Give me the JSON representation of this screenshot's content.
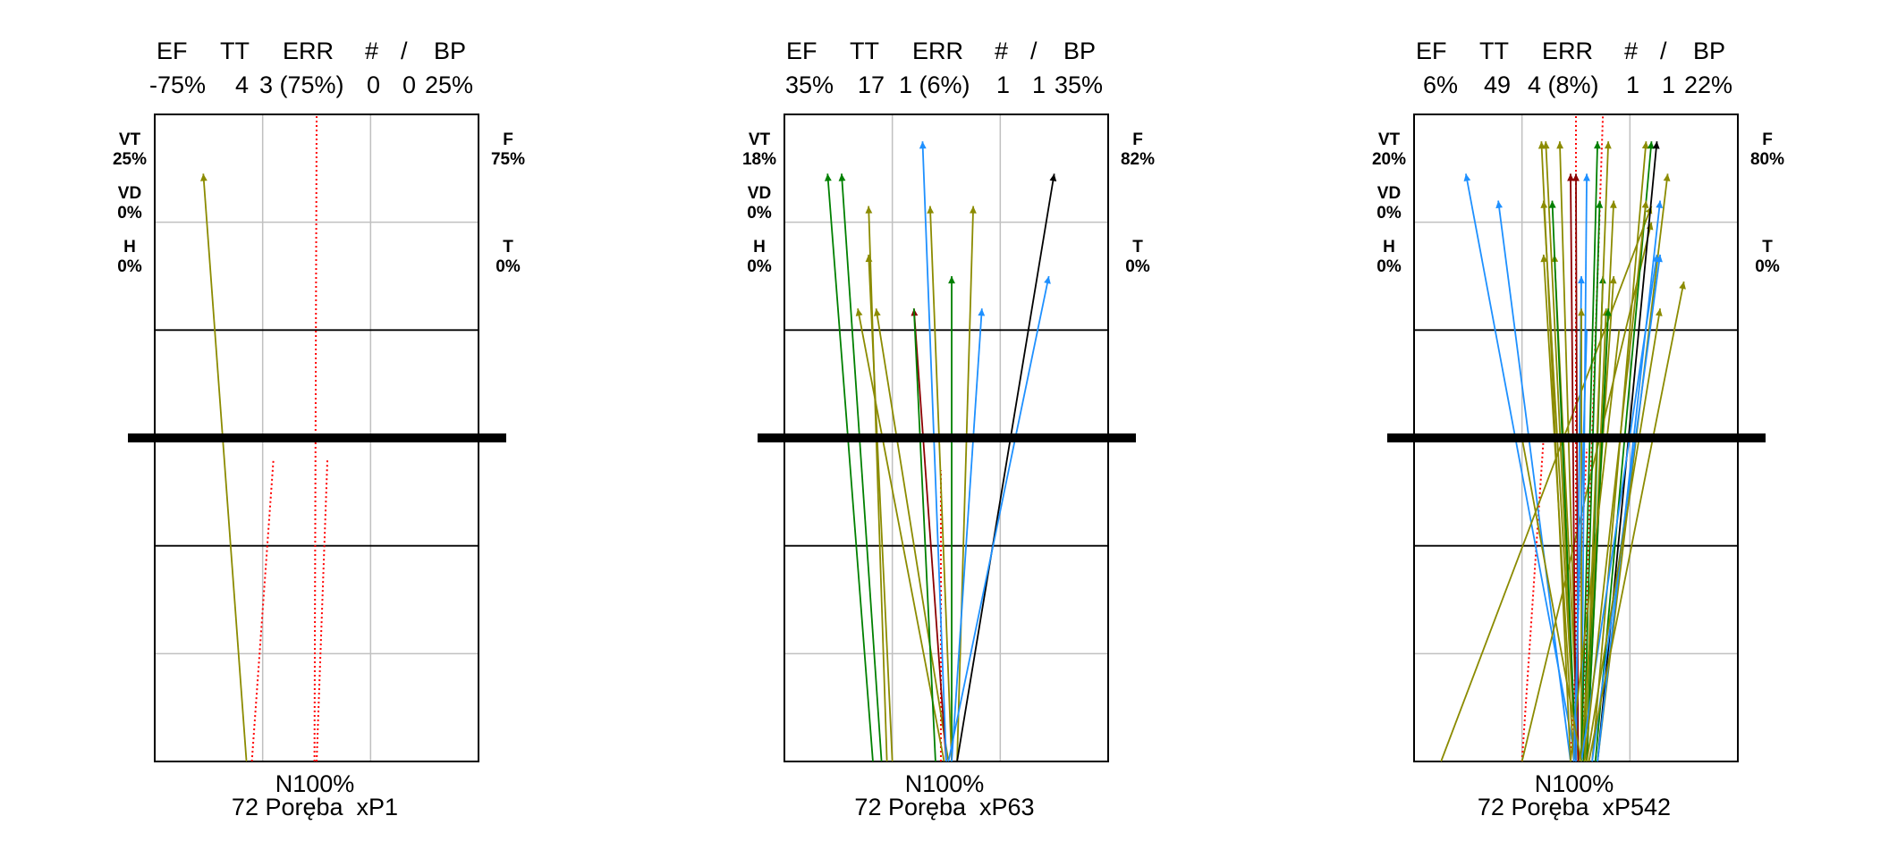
{
  "colors": {
    "olive": "#8b8b00",
    "green": "#008000",
    "blue": "#1e90ff",
    "darkred": "#8b0000",
    "black": "#000000",
    "error_red": "#ff0000",
    "grid": "#c0c0c0"
  },
  "panels": [
    {
      "headers": [
        "EF",
        "TT",
        "ERR",
        "#",
        "/",
        "BP"
      ],
      "values": [
        "-75%",
        "4",
        "3 (75%)",
        "0",
        "0",
        "25%"
      ],
      "left_labels": [
        {
          "code": "VT",
          "pct": "25%"
        },
        {
          "code": "VD",
          "pct": "0%"
        },
        {
          "code": "H",
          "pct": "0%"
        }
      ],
      "right_labels": [
        {
          "code": "F",
          "pct": "75%"
        },
        {
          "code": "T",
          "pct": "0%"
        }
      ],
      "footer_line1": "N100%",
      "footer_line2": "72 Poręba  xP1"
    },
    {
      "headers": [
        "EF",
        "TT",
        "ERR",
        "#",
        "/",
        "BP"
      ],
      "values": [
        "35%",
        "17",
        "1 (6%)",
        "1",
        "1",
        "35%"
      ],
      "left_labels": [
        {
          "code": "VT",
          "pct": "18%"
        },
        {
          "code": "VD",
          "pct": "0%"
        },
        {
          "code": "H",
          "pct": "0%"
        }
      ],
      "right_labels": [
        {
          "code": "F",
          "pct": "82%"
        },
        {
          "code": "T",
          "pct": "0%"
        }
      ],
      "footer_line1": "N100%",
      "footer_line2": "72 Poręba  xP63"
    },
    {
      "headers": [
        "EF",
        "TT",
        "ERR",
        "#",
        "/",
        "BP"
      ],
      "values": [
        "6%",
        "49",
        "4 (8%)",
        "1",
        "1",
        "22%"
      ],
      "left_labels": [
        {
          "code": "VT",
          "pct": "20%"
        },
        {
          "code": "VD",
          "pct": "0%"
        },
        {
          "code": "H",
          "pct": "0%"
        }
      ],
      "right_labels": [
        {
          "code": "F",
          "pct": "80%"
        },
        {
          "code": "T",
          "pct": "0%"
        }
      ],
      "footer_line1": "N100%",
      "footer_line2": "72 Poręba  xP542"
    }
  ],
  "chart_data": [
    {
      "type": "scatter",
      "xlim": [
        0,
        3
      ],
      "ylim": [
        0,
        6
      ],
      "grid": true,
      "lines": [
        {
          "color": "olive",
          "from": [
            0.85,
            0
          ],
          "to": [
            0.45,
            5.45
          ],
          "arrow": true
        }
      ],
      "errors": [
        {
          "from": [
            0.9,
            0
          ],
          "to": [
            1.1,
            2.8
          ]
        },
        {
          "from": [
            1.5,
            0
          ],
          "to": [
            1.6,
            2.8
          ]
        },
        {
          "from": [
            1.48,
            0
          ],
          "to": [
            1.5,
            6
          ]
        }
      ]
    },
    {
      "type": "scatter",
      "xlim": [
        0,
        3
      ],
      "ylim": [
        0,
        6
      ],
      "grid": true,
      "lines": [
        {
          "color": "green",
          "from": [
            0.82,
            0
          ],
          "to": [
            0.4,
            5.45
          ],
          "arrow": true
        },
        {
          "color": "green",
          "from": [
            0.9,
            0
          ],
          "to": [
            0.53,
            5.45
          ],
          "arrow": true
        },
        {
          "color": "olive",
          "from": [
            0.95,
            0
          ],
          "to": [
            0.78,
            5.15
          ],
          "arrow": true
        },
        {
          "color": "olive",
          "from": [
            1.0,
            0
          ],
          "to": [
            0.78,
            4.7
          ],
          "arrow": true
        },
        {
          "color": "olive",
          "from": [
            1.48,
            0
          ],
          "to": [
            0.68,
            4.2
          ],
          "arrow": true
        },
        {
          "color": "olive",
          "from": [
            1.52,
            0
          ],
          "to": [
            0.85,
            4.2
          ],
          "arrow": true
        },
        {
          "color": "darkred",
          "from": [
            1.5,
            0
          ],
          "to": [
            1.2,
            4.2
          ],
          "arrow": true
        },
        {
          "color": "green",
          "from": [
            1.55,
            0
          ],
          "to": [
            1.55,
            4.5
          ],
          "arrow": true
        },
        {
          "color": "blue",
          "from": [
            1.5,
            0
          ],
          "to": [
            1.28,
            5.75
          ],
          "arrow": true
        },
        {
          "color": "olive",
          "from": [
            1.55,
            0
          ],
          "to": [
            1.35,
            5.15
          ],
          "arrow": true
        },
        {
          "color": "olive",
          "from": [
            1.6,
            0
          ],
          "to": [
            1.75,
            5.15
          ],
          "arrow": true
        },
        {
          "color": "blue",
          "from": [
            1.55,
            0
          ],
          "to": [
            1.83,
            4.2
          ],
          "arrow": true
        },
        {
          "color": "black",
          "from": [
            1.6,
            0
          ],
          "to": [
            2.5,
            5.45
          ],
          "arrow": true
        },
        {
          "color": "blue",
          "from": [
            1.52,
            0
          ],
          "to": [
            2.45,
            4.5
          ],
          "arrow": true
        },
        {
          "color": "green",
          "from": [
            1.4,
            0
          ],
          "to": [
            1.2,
            4.2
          ],
          "arrow": false
        }
      ],
      "errors": [
        {
          "from": [
            1.45,
            0
          ],
          "to": [
            1.45,
            2.7
          ]
        }
      ]
    },
    {
      "type": "scatter",
      "xlim": [
        0,
        3
      ],
      "ylim": [
        0,
        6
      ],
      "grid": true,
      "lines": [
        {
          "color": "blue",
          "from": [
            1.5,
            0
          ],
          "to": [
            0.48,
            5.45
          ],
          "arrow": true
        },
        {
          "color": "blue",
          "from": [
            1.45,
            0
          ],
          "to": [
            0.78,
            5.2
          ],
          "arrow": true
        },
        {
          "color": "olive",
          "from": [
            0.25,
            0
          ],
          "to": [
            2.2,
            5.15
          ],
          "arrow": true
        },
        {
          "color": "olive",
          "from": [
            1.0,
            0
          ],
          "to": [
            2.2,
            5.0
          ],
          "arrow": true
        },
        {
          "color": "olive",
          "from": [
            1.45,
            0
          ],
          "to": [
            1.18,
            5.75
          ],
          "arrow": true
        },
        {
          "color": "olive",
          "from": [
            1.5,
            0
          ],
          "to": [
            1.22,
            5.75
          ],
          "arrow": true
        },
        {
          "color": "olive",
          "from": [
            1.52,
            0
          ],
          "to": [
            1.35,
            5.75
          ],
          "arrow": true
        },
        {
          "color": "olive",
          "from": [
            1.5,
            0
          ],
          "to": [
            1.2,
            5.2
          ],
          "arrow": true
        },
        {
          "color": "olive",
          "from": [
            1.48,
            0
          ],
          "to": [
            1.2,
            4.7
          ],
          "arrow": true
        },
        {
          "color": "olive",
          "from": [
            1.53,
            0
          ],
          "to": [
            1.3,
            4.7
          ],
          "arrow": true
        },
        {
          "color": "green",
          "from": [
            1.5,
            0
          ],
          "to": [
            1.28,
            5.2
          ],
          "arrow": true
        },
        {
          "color": "darkred",
          "from": [
            1.5,
            0
          ],
          "to": [
            1.45,
            5.45
          ],
          "arrow": true
        },
        {
          "color": "darkred",
          "from": [
            1.52,
            0
          ],
          "to": [
            1.5,
            5.45
          ],
          "arrow": true
        },
        {
          "color": "blue",
          "from": [
            1.55,
            0
          ],
          "to": [
            1.6,
            5.45
          ],
          "arrow": true
        },
        {
          "color": "blue",
          "from": [
            1.5,
            0
          ],
          "to": [
            1.55,
            4.5
          ],
          "arrow": true
        },
        {
          "color": "olive",
          "from": [
            1.55,
            0
          ],
          "to": [
            1.55,
            4.2
          ],
          "arrow": true
        },
        {
          "color": "green",
          "from": [
            1.55,
            0
          ],
          "to": [
            1.7,
            5.75
          ],
          "arrow": true
        },
        {
          "color": "green",
          "from": [
            1.57,
            0
          ],
          "to": [
            1.72,
            5.2
          ],
          "arrow": true
        },
        {
          "color": "green",
          "from": [
            1.6,
            0
          ],
          "to": [
            1.75,
            4.5
          ],
          "arrow": true
        },
        {
          "color": "olive",
          "from": [
            1.58,
            0
          ],
          "to": [
            1.8,
            5.75
          ],
          "arrow": true
        },
        {
          "color": "olive",
          "from": [
            1.6,
            0
          ],
          "to": [
            1.85,
            5.2
          ],
          "arrow": true
        },
        {
          "color": "olive",
          "from": [
            1.6,
            0
          ],
          "to": [
            1.78,
            4.2
          ],
          "arrow": true
        },
        {
          "color": "olive",
          "from": [
            1.55,
            0
          ],
          "to": [
            1.85,
            4.5
          ],
          "arrow": true
        },
        {
          "color": "green",
          "from": [
            1.6,
            0
          ],
          "to": [
            1.8,
            4.2
          ],
          "arrow": true
        },
        {
          "color": "olive",
          "from": [
            1.65,
            0
          ],
          "to": [
            2.15,
            5.75
          ],
          "arrow": true
        },
        {
          "color": "green",
          "from": [
            1.68,
            0
          ],
          "to": [
            2.2,
            5.75
          ],
          "arrow": true
        },
        {
          "color": "black",
          "from": [
            1.7,
            0
          ],
          "to": [
            2.25,
            5.75
          ],
          "arrow": true
        },
        {
          "color": "olive",
          "from": [
            1.7,
            0
          ],
          "to": [
            2.35,
            5.45
          ],
          "arrow": true
        },
        {
          "color": "blue",
          "from": [
            1.7,
            0
          ],
          "to": [
            2.28,
            5.2
          ],
          "arrow": true
        },
        {
          "color": "blue",
          "from": [
            1.65,
            0
          ],
          "to": [
            2.28,
            4.7
          ],
          "arrow": true
        },
        {
          "color": "olive",
          "from": [
            1.6,
            0
          ],
          "to": [
            2.28,
            4.2
          ],
          "arrow": true
        },
        {
          "color": "olive",
          "from": [
            1.62,
            0
          ],
          "to": [
            2.5,
            4.45
          ],
          "arrow": true
        },
        {
          "color": "blue",
          "from": [
            1.55,
            0
          ],
          "to": [
            2.25,
            4.7
          ],
          "arrow": true
        },
        {
          "color": "olive",
          "from": [
            1.58,
            0
          ],
          "to": [
            2.15,
            5.2
          ],
          "arrow": true
        },
        {
          "color": "olive",
          "from": [
            1.45,
            0
          ],
          "to": [
            1.9,
            4.0
          ],
          "arrow": false
        },
        {
          "color": "blue",
          "from": [
            1.48,
            0
          ],
          "to": [
            1.6,
            4.0
          ],
          "arrow": false
        },
        {
          "color": "olive",
          "from": [
            1.55,
            0
          ],
          "to": [
            1.0,
            3.0
          ],
          "arrow": false
        }
      ],
      "errors": [
        {
          "from": [
            1.0,
            0
          ],
          "to": [
            1.2,
            3.0
          ]
        },
        {
          "from": [
            1.5,
            0
          ],
          "to": [
            1.5,
            6
          ]
        },
        {
          "from": [
            1.55,
            0
          ],
          "to": [
            1.75,
            6
          ]
        },
        {
          "from": [
            1.45,
            0
          ],
          "to": [
            1.6,
            2.9
          ]
        }
      ]
    }
  ]
}
